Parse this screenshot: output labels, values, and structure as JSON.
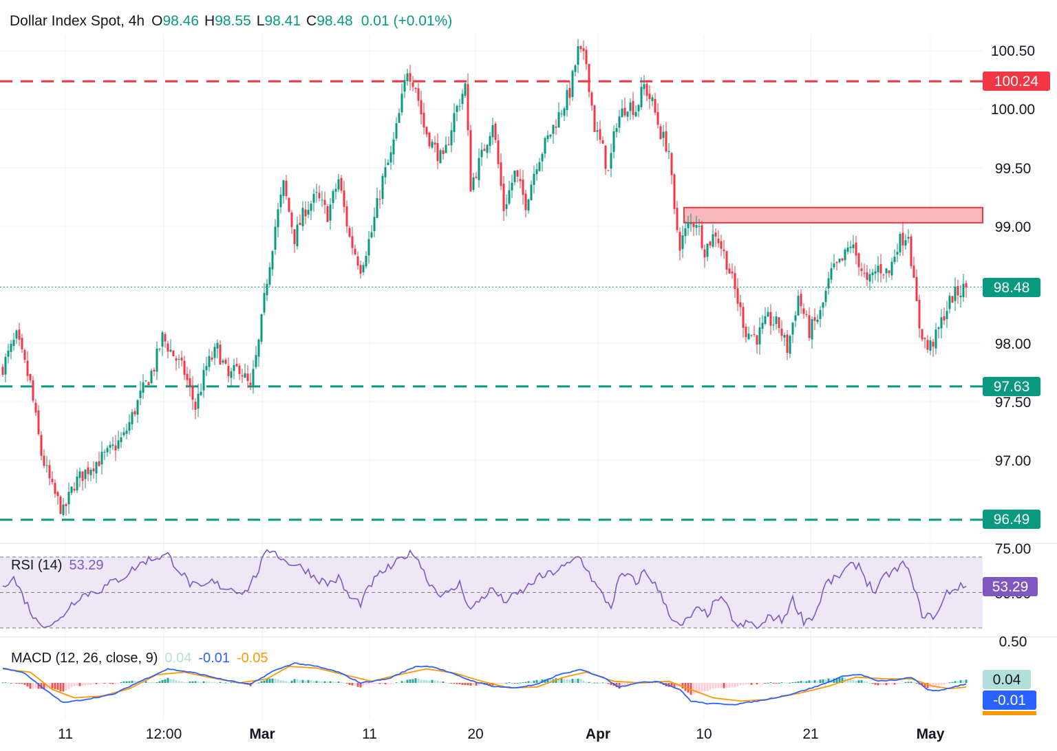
{
  "header": {
    "symbol": "Dollar Index Spot, 4h",
    "o_label": "O",
    "o_value": "98.46",
    "h_label": "H",
    "h_value": "98.55",
    "l_label": "L",
    "l_value": "98.41",
    "c_label": "C",
    "c_value": "98.48",
    "change": "0.01 (+0.01%)"
  },
  "colors": {
    "up": "#089981",
    "down": "#f23645",
    "grid": "#f0f3fa",
    "rsi_line": "#7e57c2",
    "rsi_band": "#ede7f6",
    "macd_line": "#2962ff",
    "signal_line": "#ff9800",
    "hist_up": "#26a69a",
    "hist_up_light": "#b2dfdb",
    "hist_down": "#ef5350",
    "hist_down_light": "#ffcdd2",
    "resistance_zone": "#f7b8be"
  },
  "chart_data": [
    {
      "type": "candlestick",
      "title": "Dollar Index Spot, 4h",
      "x_tick_labels": [
        "11",
        "12:00",
        "Mar",
        "11",
        "20",
        "Apr",
        "10",
        "21",
        "May"
      ],
      "y_tick_labels": [
        "100.50",
        "100.00",
        "99.50",
        "99.00",
        "98.00",
        "97.50",
        "97.00"
      ],
      "ylim": [
        96.3,
        100.8
      ],
      "grid": true,
      "last_price_label": "98.48",
      "levels": [
        {
          "label": "100.24",
          "value": 100.24,
          "style": "dashed",
          "color": "#f23645"
        },
        {
          "label": "97.63",
          "value": 97.63,
          "style": "dashed",
          "color": "#089981"
        },
        {
          "label": "96.49",
          "value": 96.49,
          "style": "dashed",
          "color": "#089981"
        }
      ],
      "resistance_zone": {
        "from": 99.03,
        "to": 99.16
      },
      "anchors": [
        [
          0,
          97.8
        ],
        [
          5,
          98.05
        ],
        [
          10,
          97.65
        ],
        [
          14,
          97.05
        ],
        [
          18,
          96.75
        ],
        [
          22,
          96.55
        ],
        [
          26,
          96.8
        ],
        [
          32,
          96.95
        ],
        [
          38,
          97.05
        ],
        [
          44,
          97.2
        ],
        [
          50,
          97.55
        ],
        [
          55,
          97.8
        ],
        [
          58,
          98.05
        ],
        [
          62,
          97.9
        ],
        [
          66,
          97.75
        ],
        [
          70,
          97.45
        ],
        [
          74,
          97.8
        ],
        [
          78,
          97.95
        ],
        [
          82,
          97.7
        ],
        [
          86,
          97.8
        ],
        [
          90,
          97.6
        ],
        [
          93,
          98.0
        ],
        [
          96,
          98.55
        ],
        [
          99,
          99.0
        ],
        [
          102,
          99.35
        ],
        [
          106,
          98.9
        ],
        [
          110,
          99.15
        ],
        [
          114,
          99.25
        ],
        [
          118,
          99.1
        ],
        [
          122,
          99.4
        ],
        [
          126,
          98.9
        ],
        [
          130,
          98.65
        ],
        [
          134,
          98.95
        ],
        [
          138,
          99.4
        ],
        [
          141,
          99.6
        ],
        [
          144,
          99.95
        ],
        [
          147,
          100.35
        ],
        [
          150,
          100.2
        ],
        [
          153,
          99.85
        ],
        [
          156,
          99.7
        ],
        [
          160,
          99.55
        ],
        [
          164,
          99.95
        ],
        [
          168,
          100.2
        ],
        [
          170,
          99.35
        ],
        [
          174,
          99.6
        ],
        [
          178,
          99.9
        ],
        [
          182,
          99.15
        ],
        [
          186,
          99.45
        ],
        [
          190,
          99.2
        ],
        [
          194,
          99.55
        ],
        [
          198,
          99.75
        ],
        [
          202,
          99.95
        ],
        [
          206,
          100.15
        ],
        [
          209,
          100.5
        ],
        [
          212,
          100.4
        ],
        [
          215,
          99.85
        ],
        [
          218,
          99.65
        ],
        [
          220,
          99.45
        ],
        [
          223,
          99.9
        ],
        [
          227,
          100.05
        ],
        [
          230,
          100.0
        ],
        [
          233,
          100.2
        ],
        [
          236,
          100.05
        ],
        [
          239,
          99.8
        ],
        [
          242,
          99.65
        ],
        [
          244,
          99.1
        ],
        [
          246,
          98.85
        ],
        [
          249,
          99.0
        ],
        [
          252,
          99.05
        ],
        [
          255,
          98.8
        ],
        [
          259,
          98.95
        ],
        [
          263,
          98.7
        ],
        [
          266,
          98.45
        ],
        [
          270,
          98.1
        ],
        [
          274,
          98.05
        ],
        [
          278,
          98.2
        ],
        [
          282,
          98.15
        ],
        [
          285,
          97.95
        ],
        [
          289,
          98.4
        ],
        [
          293,
          98.1
        ],
        [
          297,
          98.25
        ],
        [
          301,
          98.6
        ],
        [
          305,
          98.7
        ],
        [
          308,
          98.85
        ],
        [
          311,
          98.7
        ],
        [
          314,
          98.5
        ],
        [
          318,
          98.65
        ],
        [
          322,
          98.6
        ],
        [
          325,
          98.85
        ],
        [
          329,
          98.95
        ],
        [
          331,
          98.5
        ],
        [
          333,
          98.15
        ],
        [
          336,
          97.95
        ],
        [
          339,
          98.05
        ],
        [
          342,
          98.25
        ],
        [
          345,
          98.4
        ],
        [
          350,
          98.48
        ]
      ]
    },
    {
      "type": "line",
      "title": "RSI (14)",
      "last_value": "53.29",
      "y_tick_labels": [
        "75.00",
        "50.00"
      ],
      "band_levels": [
        70,
        50,
        30
      ],
      "ylim": [
        25,
        80
      ],
      "series": [
        {
          "name": "RSI",
          "values_note_anchors": true
        }
      ],
      "anchors": [
        [
          0,
          55
        ],
        [
          4,
          58
        ],
        [
          8,
          46
        ],
        [
          12,
          34
        ],
        [
          16,
          32
        ],
        [
          20,
          33
        ],
        [
          24,
          42
        ],
        [
          28,
          48
        ],
        [
          32,
          50
        ],
        [
          36,
          52
        ],
        [
          40,
          56
        ],
        [
          44,
          59
        ],
        [
          48,
          64
        ],
        [
          52,
          68
        ],
        [
          56,
          70
        ],
        [
          60,
          71
        ],
        [
          64,
          63
        ],
        [
          68,
          55
        ],
        [
          72,
          52
        ],
        [
          76,
          56
        ],
        [
          80,
          53
        ],
        [
          84,
          52
        ],
        [
          88,
          50
        ],
        [
          92,
          60
        ],
        [
          95,
          70
        ],
        [
          98,
          75
        ],
        [
          102,
          68
        ],
        [
          106,
          66
        ],
        [
          110,
          63
        ],
        [
          114,
          58
        ],
        [
          118,
          55
        ],
        [
          122,
          58
        ],
        [
          126,
          47
        ],
        [
          130,
          44
        ],
        [
          134,
          55
        ],
        [
          138,
          62
        ],
        [
          142,
          65
        ],
        [
          146,
          71
        ],
        [
          150,
          72
        ],
        [
          154,
          58
        ],
        [
          158,
          50
        ],
        [
          162,
          49
        ],
        [
          166,
          55
        ],
        [
          170,
          40
        ],
        [
          174,
          47
        ],
        [
          178,
          52
        ],
        [
          182,
          45
        ],
        [
          186,
          48
        ],
        [
          190,
          52
        ],
        [
          194,
          58
        ],
        [
          198,
          60
        ],
        [
          202,
          63
        ],
        [
          206,
          66
        ],
        [
          209,
          71
        ],
        [
          212,
          64
        ],
        [
          215,
          55
        ],
        [
          218,
          48
        ],
        [
          221,
          42
        ],
        [
          224,
          58
        ],
        [
          227,
          60
        ],
        [
          230,
          55
        ],
        [
          233,
          62
        ],
        [
          236,
          57
        ],
        [
          240,
          46
        ],
        [
          243,
          36
        ],
        [
          246,
          30
        ],
        [
          249,
          35
        ],
        [
          252,
          40
        ],
        [
          256,
          38
        ],
        [
          260,
          47
        ],
        [
          263,
          42
        ],
        [
          267,
          30
        ],
        [
          271,
          33
        ],
        [
          275,
          30
        ],
        [
          279,
          37
        ],
        [
          283,
          34
        ],
        [
          287,
          46
        ],
        [
          291,
          34
        ],
        [
          295,
          37
        ],
        [
          299,
          55
        ],
        [
          303,
          58
        ],
        [
          307,
          64
        ],
        [
          311,
          66
        ],
        [
          314,
          56
        ],
        [
          317,
          50
        ],
        [
          321,
          60
        ],
        [
          325,
          63
        ],
        [
          328,
          67
        ],
        [
          331,
          52
        ],
        [
          334,
          38
        ],
        [
          337,
          36
        ],
        [
          340,
          39
        ],
        [
          343,
          50
        ],
        [
          347,
          53
        ],
        [
          350,
          53.29
        ]
      ]
    },
    {
      "type": "line",
      "title": "MACD (12, 26, close, 9)",
      "legend_values": [
        "0.04",
        "-0.01",
        "-0.05"
      ],
      "last_values": {
        "histogram": "0.04",
        "macd": "-0.01"
      },
      "ylim": [
        -0.34,
        0.28
      ],
      "series": [
        {
          "name": "MACD",
          "anchors": [
            [
              0,
              0.18
            ],
            [
              8,
              0.12
            ],
            [
              14,
              -0.05
            ],
            [
              22,
              -0.24
            ],
            [
              30,
              -0.2
            ],
            [
              40,
              -0.14
            ],
            [
              50,
              0.02
            ],
            [
              60,
              0.17
            ],
            [
              70,
              0.12
            ],
            [
              80,
              0.04
            ],
            [
              90,
              -0.02
            ],
            [
              98,
              0.14
            ],
            [
              106,
              0.24
            ],
            [
              114,
              0.2
            ],
            [
              122,
              0.13
            ],
            [
              130,
              0.0
            ],
            [
              140,
              0.05
            ],
            [
              150,
              0.2
            ],
            [
              156,
              0.2
            ],
            [
              162,
              0.13
            ],
            [
              170,
              0.03
            ],
            [
              178,
              -0.04
            ],
            [
              186,
              -0.06
            ],
            [
              194,
              -0.02
            ],
            [
              202,
              0.1
            ],
            [
              210,
              0.16
            ],
            [
              218,
              0.07
            ],
            [
              224,
              -0.05
            ],
            [
              230,
              0.0
            ],
            [
              238,
              0.02
            ],
            [
              246,
              -0.08
            ],
            [
              250,
              -0.22
            ],
            [
              256,
              -0.25
            ],
            [
              266,
              -0.26
            ],
            [
              276,
              -0.21
            ],
            [
              286,
              -0.14
            ],
            [
              296,
              -0.04
            ],
            [
              306,
              0.09
            ],
            [
              312,
              0.1
            ],
            [
              318,
              0.02
            ],
            [
              326,
              0.04
            ],
            [
              330,
              0.07
            ],
            [
              336,
              -0.08
            ],
            [
              340,
              -0.1
            ],
            [
              344,
              -0.06
            ],
            [
              350,
              -0.01
            ]
          ]
        },
        {
          "name": "Signal",
          "anchors": [
            [
              0,
              0.17
            ],
            [
              10,
              0.13
            ],
            [
              18,
              -0.08
            ],
            [
              26,
              -0.18
            ],
            [
              36,
              -0.16
            ],
            [
              46,
              -0.07
            ],
            [
              56,
              0.1
            ],
            [
              66,
              0.13
            ],
            [
              76,
              0.06
            ],
            [
              86,
              0.0
            ],
            [
              96,
              0.05
            ],
            [
              104,
              0.2
            ],
            [
              114,
              0.18
            ],
            [
              124,
              0.1
            ],
            [
              134,
              0.02
            ],
            [
              144,
              0.1
            ],
            [
              154,
              0.17
            ],
            [
              164,
              0.12
            ],
            [
              174,
              0.02
            ],
            [
              184,
              -0.06
            ],
            [
              194,
              -0.05
            ],
            [
              204,
              0.07
            ],
            [
              212,
              0.13
            ],
            [
              222,
              0.02
            ],
            [
              232,
              0.0
            ],
            [
              242,
              0.02
            ],
            [
              250,
              -0.08
            ],
            [
              258,
              -0.18
            ],
            [
              268,
              -0.22
            ],
            [
              278,
              -0.2
            ],
            [
              290,
              -0.12
            ],
            [
              300,
              -0.04
            ],
            [
              310,
              0.07
            ],
            [
              320,
              0.05
            ],
            [
              330,
              0.05
            ],
            [
              338,
              -0.04
            ],
            [
              344,
              -0.07
            ],
            [
              350,
              -0.05
            ]
          ]
        }
      ]
    }
  ]
}
